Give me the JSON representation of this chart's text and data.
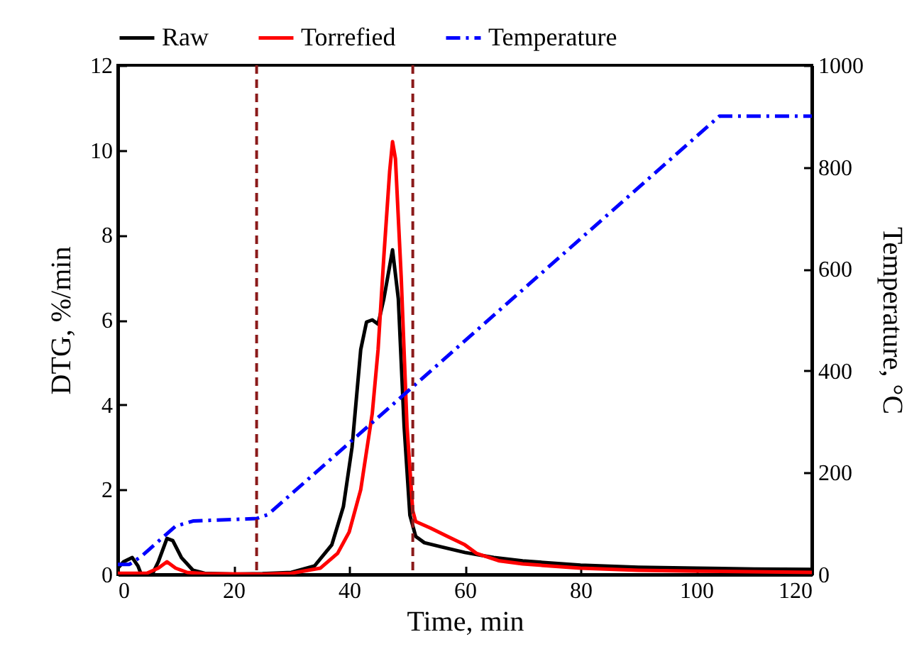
{
  "chart_data": {
    "type": "line",
    "xlabel": "Time, min",
    "ylabel": "DTG, %/min",
    "y2label": "Temperature, °C",
    "xlim": [
      0,
      120
    ],
    "xticks": [
      0,
      20,
      40,
      60,
      80,
      100,
      120
    ],
    "ylim": [
      0,
      12
    ],
    "yticks": [
      0,
      2,
      4,
      6,
      8,
      10,
      12
    ],
    "y2lim": [
      0,
      1000
    ],
    "y2ticks": [
      0,
      200,
      400,
      600,
      800,
      1000
    ],
    "legend": "top",
    "grid": false,
    "series": [
      {
        "name": "Raw",
        "color": "#000000",
        "line_style": "solid",
        "x": [
          0,
          1,
          2.5,
          3.5,
          4,
          6,
          7,
          8.5,
          9.5,
          11,
          13,
          15,
          20,
          25,
          30,
          34,
          37,
          39,
          40.5,
          42,
          43,
          44,
          45,
          46,
          47.5,
          48.5,
          49.5,
          50.5,
          51.5,
          53,
          56,
          60,
          65,
          70,
          80,
          90,
          100,
          110,
          120
        ],
        "values": [
          0.15,
          0.3,
          0.4,
          0.2,
          0.02,
          0.02,
          0.3,
          0.85,
          0.8,
          0.4,
          0.1,
          0.03,
          0.01,
          0.02,
          0.05,
          0.2,
          0.7,
          1.6,
          3,
          5.3,
          5.95,
          6,
          5.9,
          6.5,
          7.65,
          6.5,
          3.5,
          1.4,
          0.9,
          0.75,
          0.65,
          0.52,
          0.4,
          0.32,
          0.22,
          0.17,
          0.15,
          0.13,
          0.12
        ]
      },
      {
        "name": "Torrefied",
        "color": "#ff0000",
        "line_style": "solid",
        "x": [
          0,
          5,
          7,
          8.5,
          10,
          12,
          15,
          25,
          30,
          35,
          38,
          40,
          42,
          44,
          45,
          46,
          47,
          47.5,
          48,
          49,
          50,
          51,
          51.5,
          54,
          57,
          60,
          62,
          66,
          70,
          80,
          90,
          100,
          120
        ],
        "values": [
          0.03,
          0.03,
          0.15,
          0.3,
          0.15,
          0.05,
          0.02,
          0.01,
          0.03,
          0.15,
          0.5,
          1,
          2,
          3.8,
          5.3,
          7.5,
          9.5,
          10.2,
          9.8,
          7,
          3.5,
          1.5,
          1.25,
          1.1,
          0.9,
          0.7,
          0.5,
          0.32,
          0.25,
          0.15,
          0.1,
          0.08,
          0.05
        ]
      },
      {
        "name": "Temperature",
        "color": "#0000ff",
        "line_style": "dashdot",
        "axis": "y2",
        "x": [
          0,
          2,
          4,
          8,
          10,
          13,
          24,
          26,
          104,
          120
        ],
        "values": [
          20,
          20,
          35,
          75,
          95,
          105,
          110,
          118,
          900,
          900
        ]
      }
    ],
    "ref_lines": [
      {
        "axis": "x",
        "value": 24,
        "color": "#8b1a1a",
        "line_style": "dashed"
      },
      {
        "axis": "x",
        "value": 51,
        "color": "#8b1a1a",
        "line_style": "dashed"
      }
    ]
  }
}
